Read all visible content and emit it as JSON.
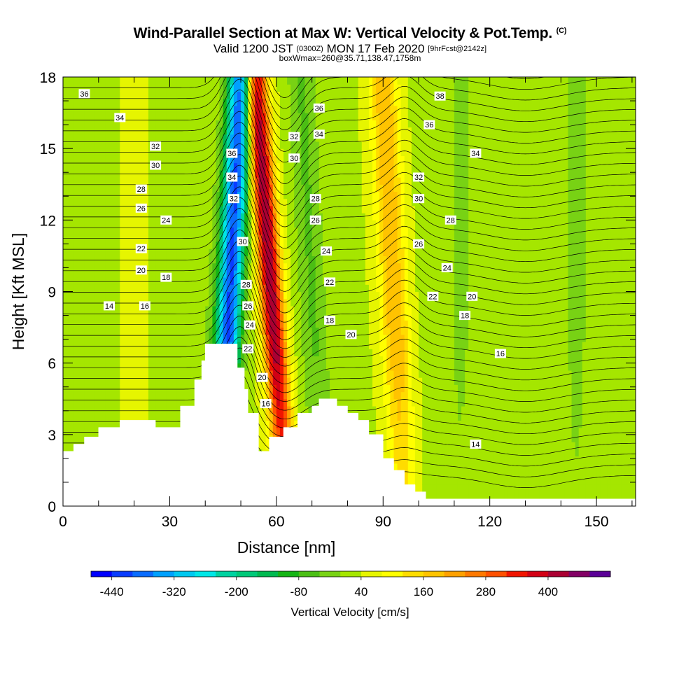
{
  "title": {
    "line1_main": "Wind-Parallel Section at Max W: Vertical Velocity & Pot.Temp.",
    "line1_suffix": "(C)",
    "line2_a": "Valid 1200 JST",
    "line2_b": "(0300Z)",
    "line2_c": "MON 17 Feb 2020",
    "line2_d": "[9hrFcst@2142z]",
    "line3": "boxWmax=260@35.71,138.47,1758m"
  },
  "chart_data": {
    "type": "heatmap",
    "xlabel": "Distance [nm]",
    "ylabel": "Height [Kft MSL]",
    "xlim": [
      0,
      161
    ],
    "ylim": [
      0,
      18
    ],
    "x_ticks": [
      "0",
      "30",
      "60",
      "90",
      "120",
      "150"
    ],
    "x_tick_values": [
      0,
      30,
      60,
      90,
      120,
      150
    ],
    "y_ticks": [
      "0",
      "3",
      "6",
      "9",
      "12",
      "15",
      "18"
    ],
    "y_tick_values": [
      0,
      3,
      6,
      9,
      12,
      15,
      18
    ],
    "terrain": [
      [
        0,
        2.3
      ],
      [
        3,
        2.6
      ],
      [
        6,
        2.9
      ],
      [
        10,
        3.3
      ],
      [
        16,
        3.6
      ],
      [
        26,
        3.3
      ],
      [
        33,
        4.2
      ],
      [
        37,
        5.3
      ],
      [
        39,
        6.1
      ],
      [
        40,
        6.8
      ],
      [
        48,
        6.8
      ],
      [
        49,
        5.8
      ],
      [
        51,
        4.9
      ],
      [
        52,
        3.9
      ],
      [
        55,
        2.3
      ],
      [
        58,
        2.9
      ],
      [
        62,
        3.3
      ],
      [
        66,
        3.9
      ],
      [
        70,
        4.2
      ],
      [
        72,
        4.5
      ],
      [
        77,
        4.2
      ],
      [
        80,
        3.9
      ],
      [
        83,
        3.6
      ],
      [
        86,
        3.0
      ],
      [
        90,
        2.0
      ],
      [
        93,
        1.5
      ],
      [
        96,
        0.9
      ],
      [
        99,
        0.6
      ],
      [
        102,
        0.3
      ],
      [
        161,
        0.3
      ]
    ],
    "vertical_velocity_bands": [
      {
        "x_center": 47,
        "x_width": 9,
        "value": -440,
        "lean": 2
      },
      {
        "x_center": 58.5,
        "x_width": 8,
        "value": 400,
        "lean": -3
      },
      {
        "x_center": 70,
        "x_width": 10,
        "value": -80,
        "lean": -2
      },
      {
        "x_center": 93,
        "x_width": 10,
        "value": 160,
        "lean": -2
      },
      {
        "x_center": 112,
        "x_width": 9,
        "value": -40,
        "lean": 0
      },
      {
        "x_center": 144,
        "x_width": 8,
        "value": -40,
        "lean": 0
      }
    ],
    "theta_contour_labels": [
      {
        "value": 36,
        "x": 6,
        "y": 17.3
      },
      {
        "value": 34,
        "x": 16,
        "y": 16.3
      },
      {
        "value": 32,
        "x": 26,
        "y": 15.1
      },
      {
        "value": 30,
        "x": 26,
        "y": 14.3
      },
      {
        "value": 28,
        "x": 22,
        "y": 13.3
      },
      {
        "value": 26,
        "x": 22,
        "y": 12.5
      },
      {
        "value": 24,
        "x": 29,
        "y": 12.0
      },
      {
        "value": 22,
        "x": 22,
        "y": 10.8
      },
      {
        "value": 20,
        "x": 22,
        "y": 9.9
      },
      {
        "value": 18,
        "x": 29,
        "y": 9.6
      },
      {
        "value": 16,
        "x": 23,
        "y": 8.4
      },
      {
        "value": 14,
        "x": 13,
        "y": 8.4
      },
      {
        "value": 36,
        "x": 47.5,
        "y": 14.8
      },
      {
        "value": 34,
        "x": 47.5,
        "y": 13.8
      },
      {
        "value": 32,
        "x": 48,
        "y": 12.9
      },
      {
        "value": 30,
        "x": 50.5,
        "y": 11.1
      },
      {
        "value": 28,
        "x": 51.5,
        "y": 9.3
      },
      {
        "value": 26,
        "x": 52,
        "y": 8.4
      },
      {
        "value": 24,
        "x": 52.5,
        "y": 7.6
      },
      {
        "value": 22,
        "x": 52,
        "y": 6.6
      },
      {
        "value": 20,
        "x": 56,
        "y": 5.4
      },
      {
        "value": 16,
        "x": 57,
        "y": 4.3
      },
      {
        "value": 36,
        "x": 72,
        "y": 16.7
      },
      {
        "value": 34,
        "x": 72,
        "y": 15.6
      },
      {
        "value": 32,
        "x": 65,
        "y": 15.5
      },
      {
        "value": 30,
        "x": 65,
        "y": 14.6
      },
      {
        "value": 28,
        "x": 71,
        "y": 12.9
      },
      {
        "value": 26,
        "x": 71,
        "y": 12.0
      },
      {
        "value": 24,
        "x": 74,
        "y": 10.7
      },
      {
        "value": 22,
        "x": 75,
        "y": 9.4
      },
      {
        "value": 18,
        "x": 75,
        "y": 7.8
      },
      {
        "value": 20,
        "x": 81,
        "y": 7.2
      },
      {
        "value": 38,
        "x": 106,
        "y": 17.2
      },
      {
        "value": 36,
        "x": 103,
        "y": 16.0
      },
      {
        "value": 34,
        "x": 116,
        "y": 14.8
      },
      {
        "value": 32,
        "x": 100,
        "y": 13.8
      },
      {
        "value": 30,
        "x": 100,
        "y": 12.9
      },
      {
        "value": 28,
        "x": 109,
        "y": 12.0
      },
      {
        "value": 26,
        "x": 100,
        "y": 11.0
      },
      {
        "value": 24,
        "x": 108,
        "y": 10.0
      },
      {
        "value": 22,
        "x": 104,
        "y": 8.8
      },
      {
        "value": 20,
        "x": 115,
        "y": 8.8
      },
      {
        "value": 18,
        "x": 113,
        "y": 8.0
      },
      {
        "value": 16,
        "x": 123,
        "y": 6.4
      },
      {
        "value": 14,
        "x": 116,
        "y": 2.6
      }
    ],
    "colorbar": {
      "label": "Vertical Velocity [cm/s]",
      "tick_labels": [
        "-440",
        "-320",
        "-200",
        "-80",
        "40",
        "160",
        "280",
        "400"
      ],
      "tick_values": [
        -440,
        -320,
        -200,
        -80,
        40,
        160,
        280,
        400
      ],
      "levels": [
        -480,
        -440,
        -400,
        -360,
        -320,
        -280,
        -240,
        -200,
        -160,
        -120,
        -80,
        -40,
        0,
        40,
        80,
        120,
        160,
        200,
        240,
        280,
        320,
        360,
        400,
        440,
        480
      ],
      "colors": [
        "#0000ff",
        "#0a3cff",
        "#0a6cff",
        "#00a0ff",
        "#00c8f0",
        "#00e6e6",
        "#00d2a0",
        "#00c878",
        "#00b950",
        "#14b414",
        "#4bbe14",
        "#78d214",
        "#a5e600",
        "#e6f500",
        "#ffff00",
        "#ffdc00",
        "#ffc300",
        "#ffa000",
        "#ff7800",
        "#ff5000",
        "#f01400",
        "#d20014",
        "#aa0032",
        "#820064",
        "#5a0096"
      ]
    }
  }
}
